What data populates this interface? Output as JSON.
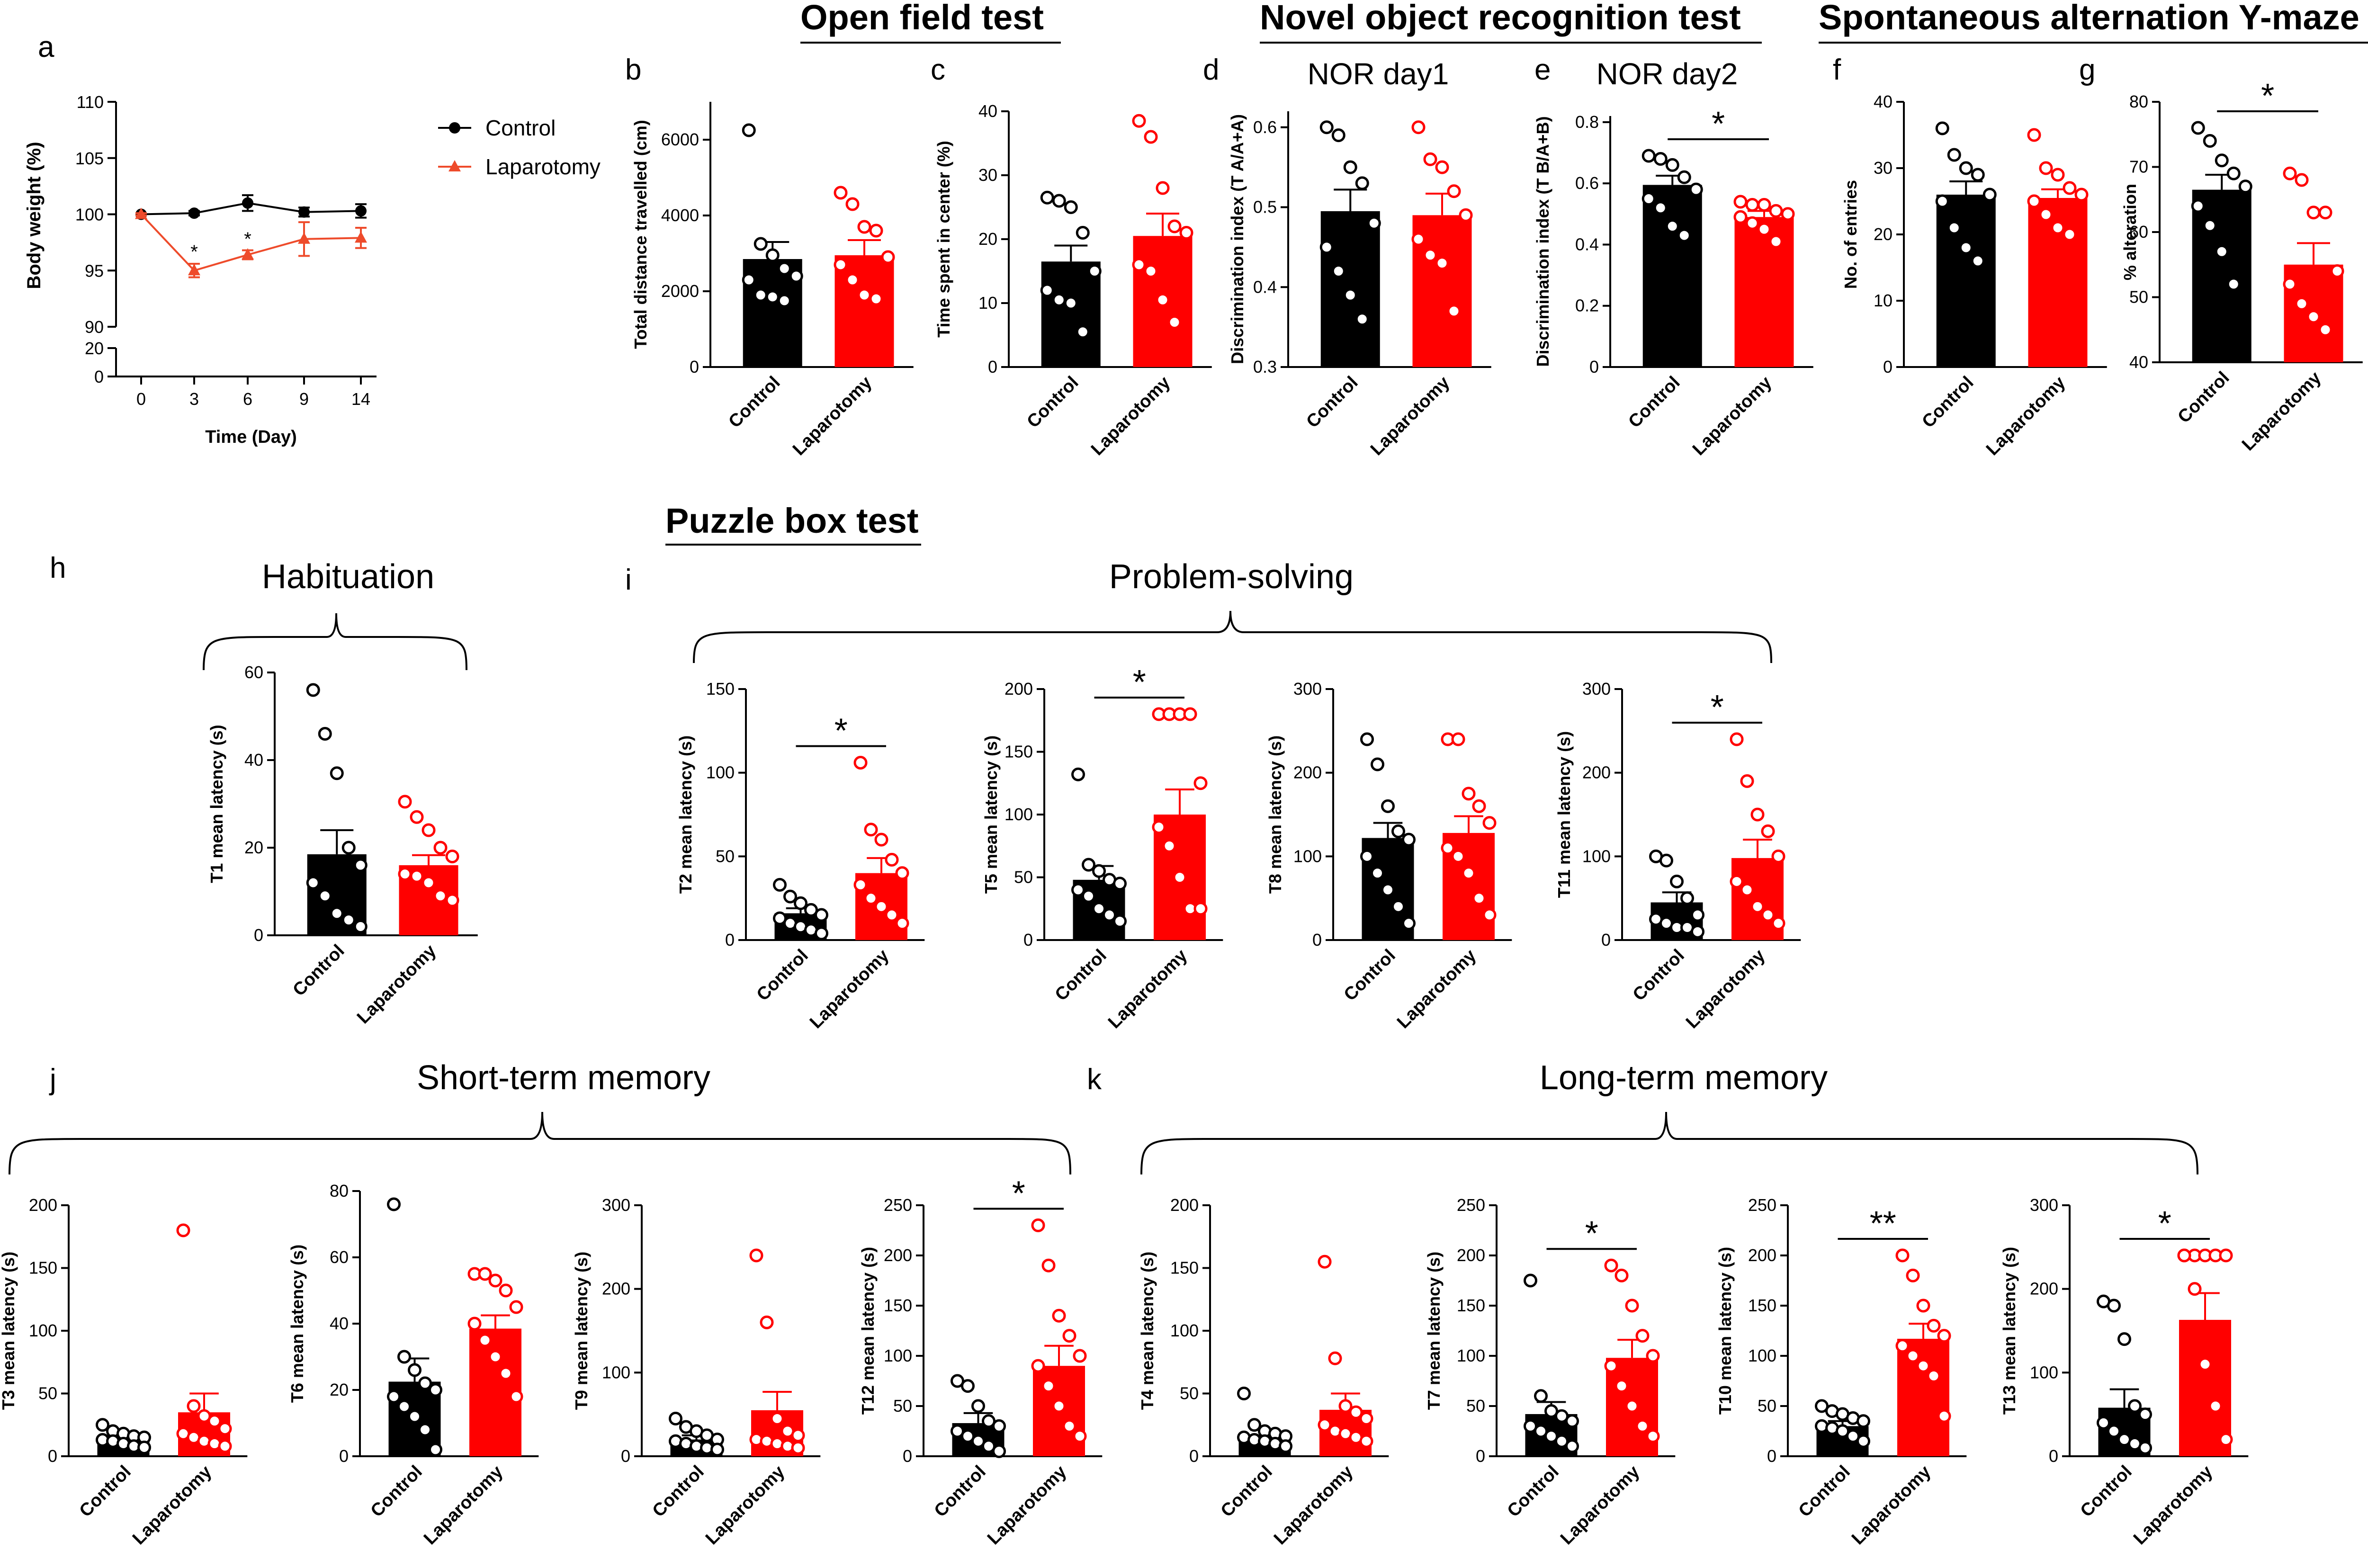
{
  "sections": {
    "open_field": "Open field test",
    "nor": "Novel object recognition test",
    "ymaze": "Spontaneous alternation Y-maze test",
    "puzzle": "Puzzle box test"
  },
  "panel_letters": [
    "a",
    "b",
    "c",
    "d",
    "e",
    "f",
    "g",
    "h",
    "i",
    "j",
    "k"
  ],
  "group_titles": {
    "habituation": "Habituation",
    "problem_solving": "Problem-solving",
    "short_term": "Short-term memory",
    "long_term": "Long-term memory"
  },
  "colors": {
    "control": "#000000",
    "laparotomy": "#ff0000",
    "line_laparotomy": "#ee4b2b"
  },
  "chart_data": [
    {
      "id": "a",
      "type": "line",
      "xlabel": "Time (Day)",
      "ylabel": "Body weight (%)",
      "x": [
        0,
        3,
        6,
        9,
        14
      ],
      "yticks": [
        0,
        20,
        90,
        95,
        100,
        105,
        110
      ],
      "series": [
        {
          "name": "Control",
          "values": [
            100,
            100.1,
            101,
            100.2,
            100.3
          ],
          "sem": [
            0.1,
            0.2,
            0.7,
            0.4,
            0.6
          ]
        },
        {
          "name": "Laparotomy",
          "values": [
            100,
            95,
            96.4,
            97.8,
            97.9
          ],
          "sem": [
            0.1,
            0.6,
            0.4,
            1.5,
            0.9
          ]
        }
      ],
      "annotations": [
        "*",
        "*"
      ],
      "legend_position": "right"
    },
    {
      "id": "b",
      "type": "bar",
      "ylabel": "Total distance travelled (cm)",
      "ylim": [
        0,
        7000
      ],
      "yticks": [
        0,
        2000,
        4000,
        6000
      ],
      "categories": [
        "Control",
        "Laparotomy"
      ],
      "means": [
        2850,
        2950
      ],
      "sem": [
        450,
        400
      ],
      "points": [
        [
          6250,
          3250,
          2950,
          2600,
          2400,
          2300,
          1900,
          1850,
          1750
        ],
        [
          4600,
          4300,
          3700,
          3600,
          2900,
          2700,
          2300,
          1900,
          1800
        ]
      ],
      "sig": ""
    },
    {
      "id": "c",
      "type": "bar",
      "ylabel": "Time spent in center (%)",
      "ylim": [
        0,
        40
      ],
      "yticks": [
        0,
        10,
        20,
        30,
        40
      ],
      "categories": [
        "Control",
        "Laparotomy"
      ],
      "means": [
        16.5,
        20.5
      ],
      "sem": [
        2.5,
        3.5
      ],
      "points": [
        [
          26.5,
          26,
          25,
          21,
          15,
          12,
          10.5,
          10,
          5.5
        ],
        [
          38.5,
          36,
          28,
          22,
          21,
          16,
          15,
          10.5,
          7
        ]
      ],
      "sig": ""
    },
    {
      "id": "d",
      "type": "bar",
      "title": "NOR day1",
      "ylabel": "Discrimination index (T A/A+A)",
      "ylim": [
        0.3,
        0.62
      ],
      "yticks": [
        0.3,
        0.4,
        0.5,
        0.6
      ],
      "categories": [
        "Control",
        "Laparotomy"
      ],
      "means": [
        0.495,
        0.49
      ],
      "sem": [
        0.027,
        0.027
      ],
      "points": [
        [
          0.6,
          0.59,
          0.55,
          0.53,
          0.48,
          0.45,
          0.42,
          0.39,
          0.36
        ],
        [
          0.6,
          0.56,
          0.55,
          0.52,
          0.49,
          0.46,
          0.44,
          0.43,
          0.37
        ]
      ],
      "sig": ""
    },
    {
      "id": "e",
      "type": "bar",
      "title": "NOR day2",
      "ylabel": "Discrimination index (T B/A+B)",
      "ylim": [
        0,
        0.82
      ],
      "yticks": [
        0,
        0.2,
        0.4,
        0.6,
        0.8
      ],
      "categories": [
        "Control",
        "Laparotomy"
      ],
      "means": [
        0.595,
        0.49
      ],
      "sem": [
        0.03,
        0.02
      ],
      "points": [
        [
          0.69,
          0.68,
          0.66,
          0.62,
          0.58,
          0.55,
          0.52,
          0.46,
          0.43
        ],
        [
          0.54,
          0.53,
          0.53,
          0.51,
          0.5,
          0.49,
          0.47,
          0.45,
          0.41
        ]
      ],
      "sig": "*"
    },
    {
      "id": "f",
      "type": "bar",
      "ylabel": "No. of entries",
      "ylim": [
        0,
        40
      ],
      "yticks": [
        0,
        10,
        20,
        30,
        40
      ],
      "categories": [
        "Control",
        "Laparotomy"
      ],
      "means": [
        26,
        25.5
      ],
      "sem": [
        2,
        1.3
      ],
      "points": [
        [
          36,
          32,
          30,
          29,
          26,
          25,
          21,
          18,
          16
        ],
        [
          35,
          30,
          29,
          27,
          26,
          25,
          23,
          21,
          20
        ]
      ],
      "sig": ""
    },
    {
      "id": "g",
      "type": "bar",
      "ylabel": "% alteration",
      "ylim": [
        40,
        80
      ],
      "yticks": [
        40,
        50,
        60,
        70,
        80
      ],
      "categories": [
        "Control",
        "Laparotomy"
      ],
      "means": [
        66.5,
        55
      ],
      "sem": [
        2.3,
        3.3
      ],
      "points": [
        [
          76,
          74,
          71,
          69,
          67,
          64,
          61,
          57,
          52
        ],
        [
          69,
          68,
          63,
          63,
          54,
          52,
          49,
          47,
          45
        ]
      ],
      "sig": "*"
    },
    {
      "id": "h",
      "type": "bar",
      "ylabel": "T1 mean latency (s)",
      "ylim": [
        0,
        60
      ],
      "yticks": [
        0,
        20,
        40,
        60
      ],
      "categories": [
        "Control",
        "Laparotomy"
      ],
      "means": [
        18.5,
        16
      ],
      "sem": [
        5.5,
        2.3
      ],
      "points": [
        [
          56,
          46,
          37,
          20,
          16,
          12,
          9,
          5,
          3.5,
          2
        ],
        [
          30.5,
          27,
          24,
          20,
          18,
          14,
          13.5,
          12,
          9,
          8
        ]
      ],
      "sig": ""
    },
    {
      "id": "i1",
      "type": "bar",
      "ylabel": "T2 mean latency (s)",
      "ylim": [
        0,
        150
      ],
      "yticks": [
        0,
        50,
        100,
        150
      ],
      "categories": [
        "Control",
        "Laparotomy"
      ],
      "means": [
        16,
        40
      ],
      "sem": [
        3,
        9
      ],
      "points": [
        [
          33,
          26,
          22,
          18,
          15,
          13,
          10,
          8,
          6,
          4
        ],
        [
          106,
          66,
          60,
          48,
          40,
          33,
          25,
          20,
          15,
          10
        ]
      ],
      "sig": "*"
    },
    {
      "id": "i2",
      "type": "bar",
      "ylabel": "T5 mean latency (s)",
      "ylim": [
        0,
        200
      ],
      "yticks": [
        0,
        50,
        100,
        150,
        200
      ],
      "categories": [
        "Control",
        "Laparotomy"
      ],
      "means": [
        48,
        100
      ],
      "sem": [
        11,
        20
      ],
      "points": [
        [
          132,
          60,
          55,
          48,
          45,
          40,
          35,
          25,
          20,
          15
        ],
        [
          180,
          180,
          180,
          180,
          125,
          90,
          75,
          50,
          25,
          25
        ]
      ],
      "sig": "*"
    },
    {
      "id": "i3",
      "type": "bar",
      "ylabel": "T8 mean latency (s)",
      "ylim": [
        0,
        300
      ],
      "yticks": [
        0,
        100,
        200,
        300
      ],
      "categories": [
        "Control",
        "Laparotomy"
      ],
      "means": [
        122,
        128
      ],
      "sem": [
        18,
        20
      ],
      "points": [
        [
          240,
          210,
          160,
          130,
          120,
          100,
          80,
          60,
          40,
          20
        ],
        [
          240,
          240,
          175,
          160,
          140,
          110,
          100,
          80,
          50,
          30
        ]
      ],
      "sig": ""
    },
    {
      "id": "i4",
      "type": "bar",
      "ylabel": "T11 mean latency (s)",
      "ylim": [
        0,
        300
      ],
      "yticks": [
        0,
        100,
        200,
        300
      ],
      "categories": [
        "Control",
        "Laparotomy"
      ],
      "means": [
        45,
        98
      ],
      "sem": [
        12,
        22
      ],
      "points": [
        [
          100,
          95,
          70,
          50,
          30,
          25,
          20,
          15,
          15,
          10
        ],
        [
          240,
          190,
          150,
          130,
          100,
          70,
          60,
          40,
          30,
          20
        ]
      ],
      "sig": "*"
    },
    {
      "id": "j1",
      "type": "bar",
      "ylabel": "T3 mean latency (s)",
      "ylim": [
        0,
        200
      ],
      "yticks": [
        0,
        50,
        100,
        150,
        200
      ],
      "categories": [
        "Control",
        "Laparotomy"
      ],
      "means": [
        15,
        35
      ],
      "sem": [
        3,
        15
      ],
      "points": [
        [
          25,
          20,
          18,
          16,
          15,
          13,
          12,
          10,
          8,
          7
        ],
        [
          180,
          40,
          32,
          28,
          22,
          18,
          15,
          12,
          10,
          8
        ]
      ],
      "sig": ""
    },
    {
      "id": "j2",
      "type": "bar",
      "ylabel": "T6 mean latency (s)",
      "ylim": [
        0,
        80
      ],
      "yticks": [
        0,
        20,
        40,
        60,
        80
      ],
      "categories": [
        "Control",
        "Laparotomy"
      ],
      "means": [
        22.5,
        38.5
      ],
      "sem": [
        7,
        4
      ],
      "points": [
        [
          76,
          30,
          26,
          22,
          20,
          18,
          15,
          12,
          8,
          2
        ],
        [
          55,
          55,
          53,
          50,
          45,
          40,
          35,
          30,
          25,
          18
        ]
      ],
      "sig": ""
    },
    {
      "id": "j3",
      "type": "bar",
      "ylabel": "T9 mean latency (s)",
      "ylim": [
        0,
        300
      ],
      "yticks": [
        0,
        100,
        200,
        300
      ],
      "categories": [
        "Control",
        "Laparotomy"
      ],
      "means": [
        20,
        55
      ],
      "sem": [
        5,
        22
      ],
      "points": [
        [
          45,
          35,
          30,
          25,
          20,
          18,
          15,
          12,
          10,
          8
        ],
        [
          240,
          160,
          45,
          30,
          25,
          20,
          18,
          15,
          12,
          10
        ]
      ],
      "sig": ""
    },
    {
      "id": "j4",
      "type": "bar",
      "ylabel": "T12 mean latency (s)",
      "ylim": [
        0,
        250
      ],
      "yticks": [
        0,
        50,
        100,
        150,
        200,
        250
      ],
      "categories": [
        "Control",
        "Laparotomy"
      ],
      "means": [
        33,
        90
      ],
      "sem": [
        10,
        20
      ],
      "points": [
        [
          75,
          70,
          50,
          35,
          30,
          25,
          20,
          15,
          10,
          5
        ],
        [
          230,
          190,
          140,
          120,
          100,
          90,
          70,
          50,
          30,
          20
        ]
      ],
      "sig": "*"
    },
    {
      "id": "k1",
      "type": "bar",
      "ylabel": "T4 mean latency (s)",
      "ylim": [
        0,
        200
      ],
      "yticks": [
        0,
        50,
        100,
        150,
        200
      ],
      "categories": [
        "Control",
        "Laparotomy"
      ],
      "means": [
        17,
        37
      ],
      "sem": [
        4,
        13
      ],
      "points": [
        [
          50,
          25,
          20,
          18,
          16,
          15,
          13,
          12,
          10,
          8
        ],
        [
          155,
          78,
          40,
          35,
          30,
          25,
          20,
          18,
          15,
          12
        ]
      ],
      "sig": ""
    },
    {
      "id": "k2",
      "type": "bar",
      "ylabel": "T7 mean latency (s)",
      "ylim": [
        0,
        250
      ],
      "yticks": [
        0,
        50,
        100,
        150,
        200,
        250
      ],
      "categories": [
        "Control",
        "Laparotomy"
      ],
      "means": [
        42,
        98
      ],
      "sem": [
        12,
        18
      ],
      "points": [
        [
          175,
          60,
          45,
          40,
          35,
          30,
          25,
          20,
          15,
          10
        ],
        [
          190,
          180,
          150,
          120,
          100,
          90,
          70,
          50,
          30,
          20
        ]
      ],
      "sig": "*"
    },
    {
      "id": "k3",
      "type": "bar",
      "ylabel": "T10 mean latency (s)",
      "ylim": [
        0,
        250
      ],
      "yticks": [
        0,
        50,
        100,
        150,
        200,
        250
      ],
      "categories": [
        "Control",
        "Laparotomy"
      ],
      "means": [
        30,
        117
      ],
      "sem": [
        5,
        15
      ],
      "points": [
        [
          50,
          45,
          42,
          38,
          35,
          30,
          28,
          25,
          20,
          15
        ],
        [
          200,
          180,
          150,
          130,
          120,
          110,
          100,
          90,
          80,
          40
        ]
      ],
      "sig": "**"
    },
    {
      "id": "k4",
      "type": "bar",
      "ylabel": "T13 mean latency (s)",
      "ylim": [
        0,
        300
      ],
      "yticks": [
        0,
        100,
        200,
        300
      ],
      "categories": [
        "Control",
        "Laparotomy"
      ],
      "means": [
        58,
        163
      ],
      "sem": [
        22,
        32
      ],
      "points": [
        [
          185,
          180,
          140,
          60,
          50,
          40,
          30,
          20,
          15,
          10
        ],
        [
          240,
          240,
          240,
          240,
          240,
          240,
          200,
          110,
          60,
          20
        ]
      ],
      "sig": "*"
    }
  ]
}
